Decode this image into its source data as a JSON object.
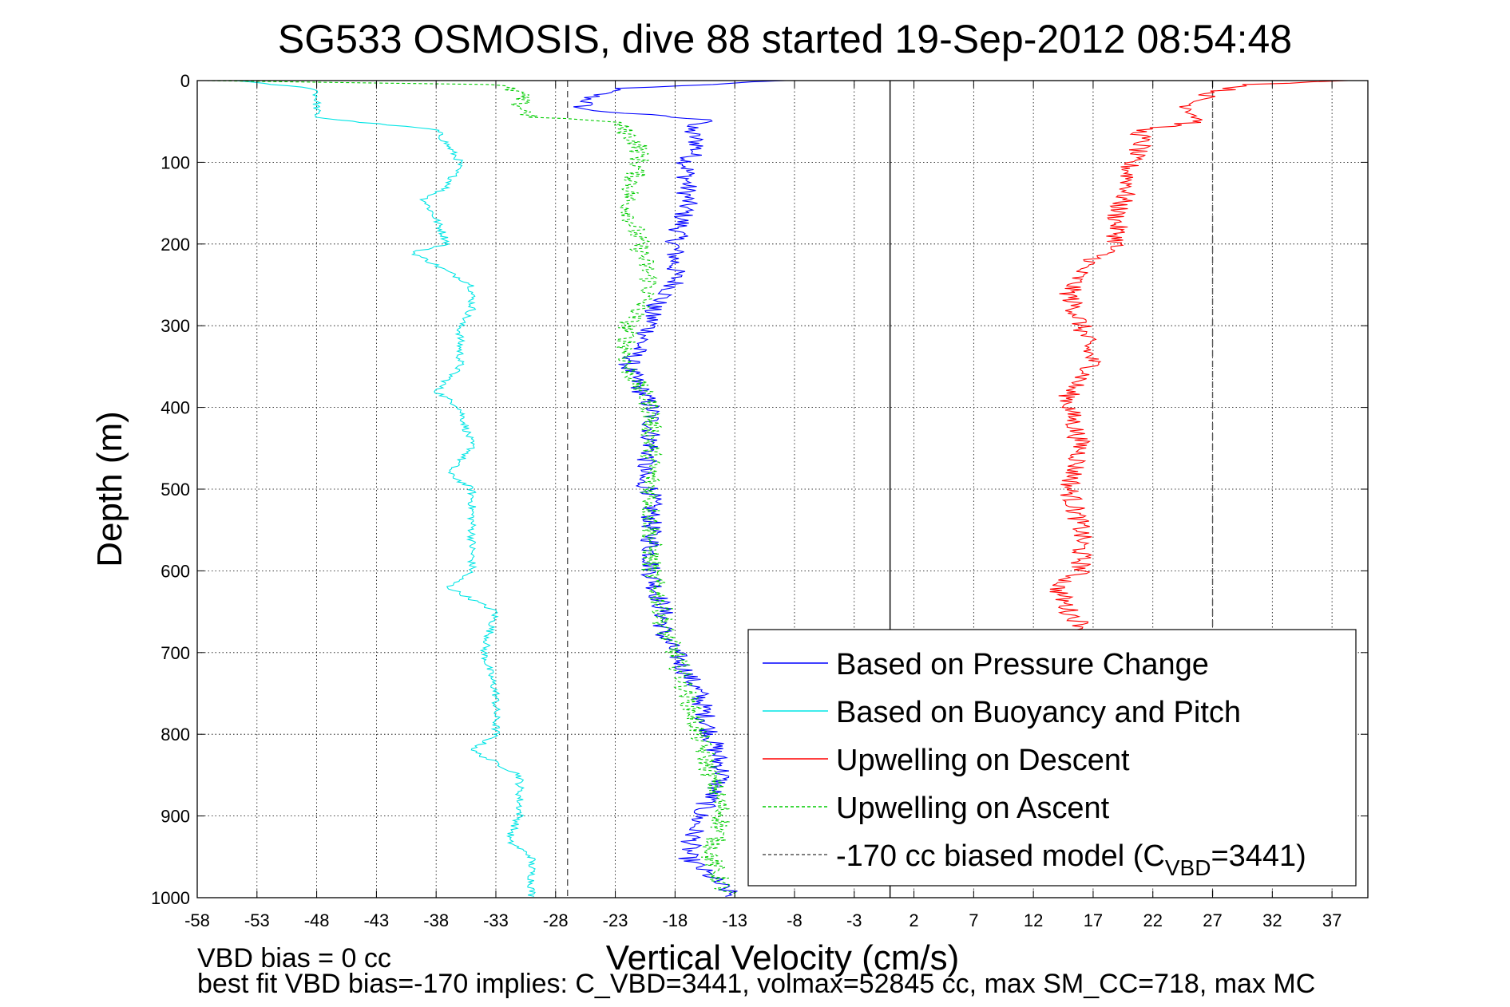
{
  "chart_data": {
    "type": "line",
    "title": "SG533 OSMOSIS, dive 88 started 19-Sep-2012 08:54:48",
    "xlabel": "Vertical Velocity (cm/s)",
    "ylabel": "Depth (m)",
    "xlim": [
      -58,
      40
    ],
    "ylim": [
      0,
      1000
    ],
    "y_reversed": true,
    "grid": true,
    "x_ticks": [
      -58,
      -53,
      -48,
      -43,
      -38,
      -33,
      -28,
      -23,
      -18,
      -13,
      -8,
      -3,
      2,
      7,
      12,
      17,
      22,
      27,
      32,
      37
    ],
    "y_ticks": [
      0,
      100,
      200,
      300,
      400,
      500,
      600,
      700,
      800,
      900,
      1000
    ],
    "legend_position": "bottom-right",
    "reference_lines": [
      {
        "name": "zero",
        "x": 0,
        "style": "solid",
        "color": "#000000"
      },
      {
        "name": "model-descent",
        "x": -27,
        "style": "dashed",
        "color": "#555555"
      },
      {
        "name": "model-ascent",
        "x": 27,
        "style": "dashed",
        "color": "#555555"
      }
    ],
    "series": [
      {
        "name": "Based on Pressure Change",
        "color": "#0000ff",
        "style": "solid",
        "depth": [
          0,
          10,
          20,
          35,
          50,
          55,
          80,
          100,
          150,
          200,
          250,
          280,
          300,
          350,
          400,
          450,
          490,
          500,
          550,
          600,
          650,
          680,
          700,
          750,
          800,
          850,
          900,
          950,
          1000
        ],
        "velocity": [
          -9,
          -23,
          -25,
          -26,
          -14,
          -17,
          -16,
          -17,
          -17,
          -18,
          -18,
          -20,
          -20,
          -22,
          -20,
          -20,
          -21,
          -20,
          -20,
          -20,
          -19,
          -19,
          -18,
          -16,
          -15,
          -14,
          -16,
          -17,
          -13
        ]
      },
      {
        "name": "Based on Buoyancy and Pitch",
        "color": "#00e5e5",
        "style": "solid",
        "depth": [
          0,
          10,
          20,
          30,
          45,
          50,
          60,
          100,
          130,
          145,
          170,
          200,
          210,
          250,
          280,
          300,
          350,
          380,
          400,
          450,
          480,
          500,
          550,
          600,
          620,
          650,
          700,
          750,
          800,
          820,
          850,
          900,
          930,
          950,
          1000
        ],
        "velocity": [
          -55,
          -48,
          -48,
          -48,
          -48,
          -45,
          -38,
          -36,
          -37,
          -39,
          -38,
          -37,
          -40,
          -35,
          -35,
          -36,
          -36,
          -38,
          -36,
          -35,
          -37,
          -35,
          -35,
          -35,
          -37,
          -33,
          -34,
          -33,
          -33,
          -35,
          -31,
          -31,
          -32,
          -30,
          -30
        ]
      },
      {
        "name": "Upwelling on Descent",
        "color": "#ff0000",
        "style": "solid",
        "depth": [
          0,
          5,
          15,
          30,
          50,
          60,
          80,
          100,
          130,
          160,
          200,
          210,
          230,
          260,
          300,
          350,
          380,
          400,
          450,
          500,
          550,
          600,
          620,
          650,
          680
        ],
        "velocity": [
          39,
          30,
          27,
          25,
          26,
          21,
          21,
          20,
          20,
          19,
          19,
          18,
          16,
          15,
          16,
          17,
          15,
          15,
          16,
          15,
          16,
          16,
          14,
          15,
          17
        ]
      },
      {
        "name": "Upwelling on Ascent",
        "color": "#00cc00",
        "style": "dashed",
        "depth": [
          0,
          5,
          15,
          30,
          45,
          50,
          80,
          100,
          150,
          200,
          250,
          280,
          300,
          340,
          350,
          400,
          450,
          500,
          550,
          600,
          650,
          670,
          700,
          750,
          800,
          850,
          900,
          950,
          990,
          1000
        ],
        "velocity": [
          -57,
          -33,
          -31,
          -31,
          -30,
          -23,
          -21,
          -21,
          -22,
          -21,
          -20,
          -21,
          -22,
          -22,
          -22,
          -20,
          -20,
          -20,
          -20,
          -20,
          -19,
          -19,
          -18,
          -17,
          -16,
          -15,
          -14,
          -15,
          -14,
          -13
        ]
      }
    ],
    "legend": [
      {
        "label": "Based on Pressure Change",
        "color": "#0000ff",
        "style": "solid"
      },
      {
        "label": "Based on Buoyancy and Pitch",
        "color": "#00e5e5",
        "style": "solid"
      },
      {
        "label": "Upwelling on Descent",
        "color": "#ff0000",
        "style": "solid"
      },
      {
        "label": "Upwelling on Ascent",
        "color": "#00cc00",
        "style": "dashed"
      },
      {
        "label_pre": "-170 cc biased model (C",
        "label_sub": "VBD",
        "label_post": "=3441)",
        "color": "#555555",
        "style": "dashed"
      }
    ],
    "annotations": [
      "VBD bias = 0 cc",
      "best fit VBD bias=-170 implies: C_VBD=3441, volmax=52845 cc, max SM_CC=718, max MC"
    ]
  }
}
